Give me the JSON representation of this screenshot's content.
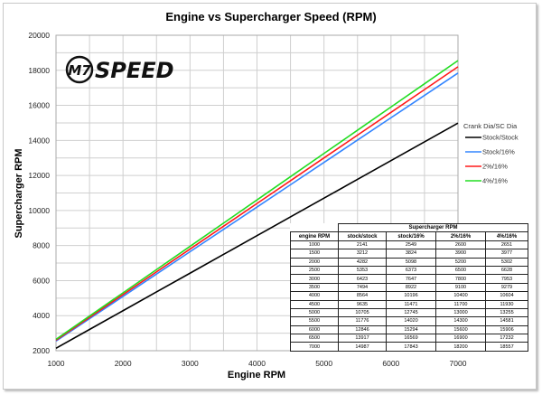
{
  "chart_data": {
    "type": "line",
    "title": "Engine vs Supercharger Speed (RPM)",
    "xlabel": "Engine RPM",
    "ylabel": "Supercharger RPM",
    "xlim": [
      1000,
      7000
    ],
    "ylim": [
      2000,
      20000
    ],
    "x_ticks": [
      1000,
      2000,
      3000,
      4000,
      5000,
      6000,
      7000
    ],
    "y_ticks": [
      2000,
      4000,
      6000,
      8000,
      10000,
      12000,
      14000,
      16000,
      18000,
      20000
    ],
    "grid": true,
    "legend_title": "Crank Dia/SC Dia",
    "legend_position": "right",
    "x": [
      1000,
      1500,
      2000,
      2500,
      3000,
      3500,
      4000,
      4500,
      5000,
      5500,
      6000,
      6500,
      7000
    ],
    "series": [
      {
        "name": "Stock/Stock",
        "color": "#000000",
        "values": [
          2141,
          3212,
          4282,
          5353,
          6423,
          7494,
          8564,
          9635,
          10705,
          11776,
          12846,
          13917,
          14987
        ]
      },
      {
        "name": "Stock/16%",
        "color": "#3385ff",
        "values": [
          2549,
          3824,
          5098,
          6373,
          7647,
          8922,
          10196,
          11471,
          12745,
          14020,
          15294,
          16569,
          17843
        ]
      },
      {
        "name": "2%/16%",
        "color": "#ff1a1a",
        "values": [
          2600,
          3900,
          5200,
          6500,
          7800,
          9100,
          10400,
          11700,
          13000,
          14300,
          15600,
          16900,
          18200
        ]
      },
      {
        "name": "4%/16%",
        "color": "#22dd22",
        "values": [
          2651,
          3977,
          5302,
          6628,
          7953,
          9279,
          10604,
          11930,
          13255,
          14581,
          15906,
          17232,
          18557
        ]
      }
    ],
    "table": {
      "group_header": "Supercharger RPM",
      "columns": [
        "engine RPM",
        "stock/stock",
        "stock/16%",
        "2%/16%",
        "4%/16%"
      ]
    }
  },
  "logo": {
    "text": "M7 SPEED",
    "mark": "M7",
    "word": "SPEED"
  }
}
